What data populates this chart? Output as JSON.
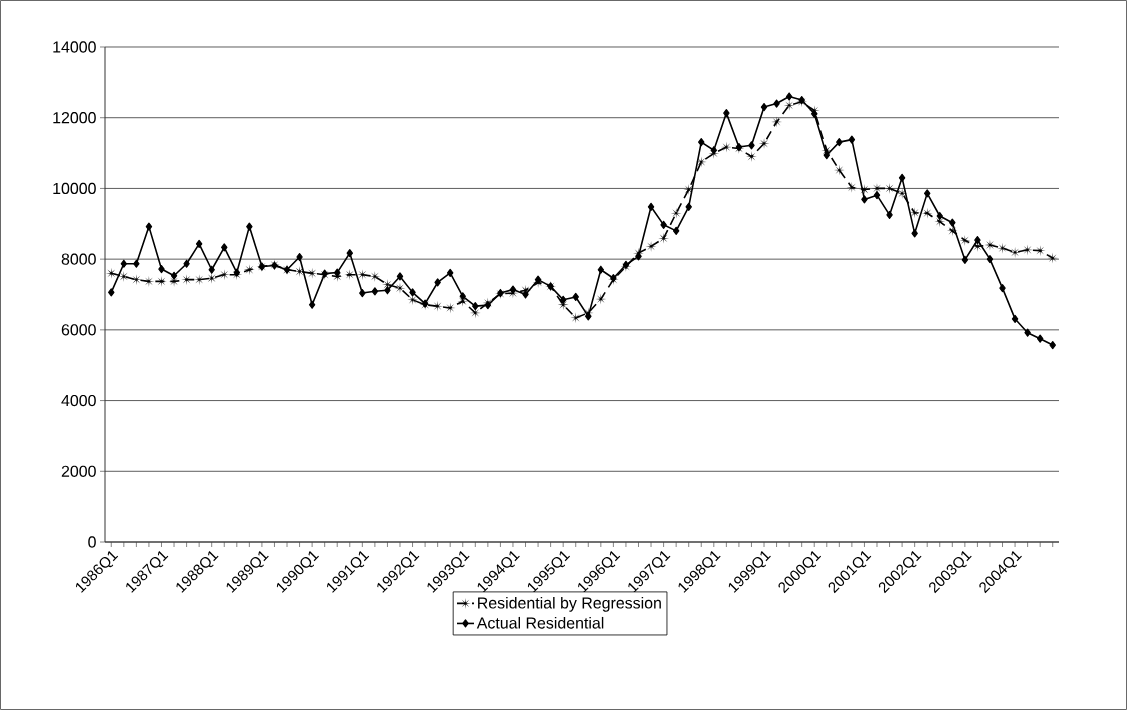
{
  "chart_data": {
    "type": "line",
    "categories": [
      "1986Q1",
      null,
      null,
      null,
      "1987Q1",
      null,
      null,
      null,
      "1988Q1",
      null,
      null,
      null,
      "1989Q1",
      null,
      null,
      null,
      "1990Q1",
      null,
      null,
      null,
      "1991Q1",
      null,
      null,
      null,
      "1992Q1",
      null,
      null,
      null,
      "1993Q1",
      null,
      null,
      null,
      "1994Q1",
      null,
      null,
      null,
      "1995Q1",
      null,
      null,
      null,
      "1996Q1",
      null,
      null,
      null,
      "1997Q1",
      null,
      null,
      null,
      "1998Q1",
      null,
      null,
      null,
      "1999Q1",
      null,
      null,
      null,
      "2000Q1",
      null,
      null,
      null,
      "2001Q1",
      null,
      null,
      null,
      "2002Q1",
      null,
      null,
      null,
      "2003Q1",
      null,
      null,
      null,
      "2004Q1",
      null,
      null,
      null
    ],
    "series": [
      {
        "name": "Residential by Regression",
        "color": "#000000",
        "marker": "star",
        "line_style": "dashed",
        "values": [
          7600,
          7510,
          7420,
          7370,
          7370,
          7370,
          7420,
          7420,
          7460,
          7560,
          7560,
          7700,
          7790,
          7840,
          7700,
          7650,
          7600,
          7560,
          7510,
          7560,
          7560,
          7510,
          7280,
          7180,
          6850,
          6710,
          6670,
          6620,
          6810,
          6480,
          6760,
          7020,
          7040,
          7120,
          7340,
          7230,
          6710,
          6340,
          6480,
          6870,
          7420,
          7790,
          8170,
          8360,
          8590,
          9300,
          9970,
          10750,
          10990,
          11170,
          11130,
          10900,
          11270,
          11880,
          12350,
          12450,
          12200,
          11080,
          10520,
          10030,
          9970,
          10000,
          10000,
          9860,
          9310,
          9300,
          9060,
          8800,
          8530,
          8360,
          8400,
          8310,
          8190,
          8260,
          8240,
          8030
        ]
      },
      {
        "name": "Actual Residential",
        "color": "#000000",
        "marker": "diamond",
        "line_style": "solid",
        "values": [
          7060,
          7870,
          7870,
          8920,
          7720,
          7530,
          7870,
          8430,
          7700,
          8330,
          7620,
          8920,
          7790,
          7820,
          7700,
          8060,
          6710,
          7590,
          7620,
          8170,
          7040,
          7090,
          7120,
          7510,
          7060,
          6740,
          7340,
          7610,
          6950,
          6670,
          6700,
          7040,
          7140,
          7000,
          7420,
          7230,
          6850,
          6930,
          6380,
          7700,
          7460,
          7840,
          8080,
          9480,
          8970,
          8800,
          9480,
          11310,
          11080,
          12130,
          11170,
          11220,
          12300,
          12400,
          12600,
          12500,
          12110,
          10940,
          11310,
          11380,
          9690,
          9810,
          9250,
          10300,
          8730,
          9860,
          9220,
          9030,
          7980,
          8540,
          8000,
          7180,
          6310,
          5920,
          5750,
          5570
        ]
      }
    ],
    "ylim": [
      0,
      14000
    ],
    "yticks": [
      0,
      2000,
      4000,
      6000,
      8000,
      10000,
      12000,
      14000
    ],
    "grid": "y",
    "legend": "bottom"
  }
}
